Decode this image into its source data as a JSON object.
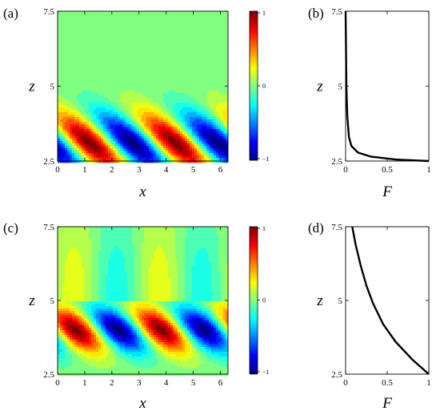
{
  "chart_data": [
    {
      "panel": "(a)",
      "type": "heatmap",
      "xlabel": "x",
      "ylabel": "z",
      "x_ticks": [
        "0",
        "1",
        "2",
        "3",
        "4",
        "5",
        "6"
      ],
      "y_ticks": [
        "2.5",
        "5",
        "7.5"
      ],
      "xlim": [
        0,
        6.28
      ],
      "ylim": [
        2.5,
        7.5
      ],
      "colorbar": {
        "ticks": [
          "1",
          "0",
          "−1"
        ],
        "range": [
          -1,
          1
        ],
        "colormap": "jet"
      },
      "field": {
        "description": "traveling-wave pattern below interface, zero above",
        "interface_z": 4.95,
        "waves": 2,
        "max_loc": {
          "x": [
            2.8,
            5.95
          ],
          "z": 3.1
        },
        "min_loc": {
          "x": [
            1.2,
            4.35
          ],
          "z": 3.1
        },
        "upper_value": 0.0
      }
    },
    {
      "panel": "(b)",
      "type": "line",
      "xlabel": "F",
      "ylabel": "z",
      "x_ticks": [
        "0",
        "0.5",
        "1"
      ],
      "y_ticks": [
        "2.5",
        "5",
        "7.5"
      ],
      "xlim": [
        0,
        1
      ],
      "ylim": [
        2.5,
        7.5
      ],
      "series": [
        {
          "x": [
            1.0,
            0.6,
            0.3,
            0.15,
            0.07,
            0.04,
            0.02,
            0.01,
            0.0
          ],
          "y": [
            2.5,
            2.55,
            2.65,
            2.78,
            3.0,
            3.3,
            4.0,
            5.0,
            7.5
          ]
        }
      ]
    },
    {
      "panel": "(c)",
      "type": "heatmap",
      "xlabel": "x",
      "ylabel": "z",
      "x_ticks": [
        "0",
        "1",
        "2",
        "3",
        "4",
        "5",
        "6"
      ],
      "y_ticks": [
        "2.5",
        "5",
        "7.5"
      ],
      "xlim": [
        0,
        6.28
      ],
      "ylim": [
        2.5,
        7.5
      ],
      "colorbar": {
        "ticks": [
          "1",
          "0",
          "−1"
        ],
        "range": [
          -1,
          1
        ],
        "colormap": "jet"
      },
      "field": {
        "description": "traveling-wave pattern below interface, weaker standing pattern above",
        "interface_z": 4.95,
        "waves": 2,
        "max_loc": {
          "x": [
            0.6,
            3.75
          ],
          "z": 4.1
        },
        "min_loc": {
          "x": [
            2.2,
            5.3
          ],
          "z": 4.1
        }
      }
    },
    {
      "panel": "(d)",
      "type": "line",
      "xlabel": "F",
      "ylabel": "z",
      "x_ticks": [
        "0",
        "0.5",
        "1"
      ],
      "y_ticks": [
        "2.5",
        "5",
        "7.5"
      ],
      "xlim": [
        0,
        1
      ],
      "ylim": [
        2.5,
        7.5
      ],
      "series": [
        {
          "x": [
            1.0,
            0.8,
            0.6,
            0.45,
            0.33,
            0.25,
            0.18,
            0.12,
            0.08
          ],
          "y": [
            2.5,
            3.0,
            3.6,
            4.2,
            4.9,
            5.5,
            6.2,
            6.9,
            7.5
          ]
        }
      ]
    }
  ]
}
